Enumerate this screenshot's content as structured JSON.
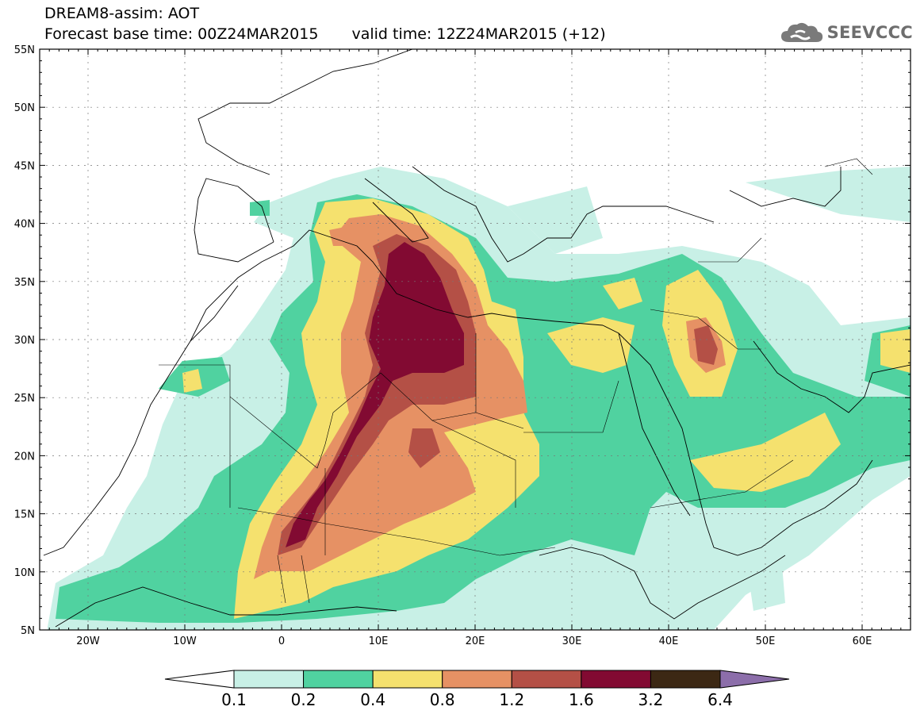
{
  "title": {
    "line1": "DREAM8-assim: AOT",
    "base": "Forecast base time: 00Z24MAR2015",
    "valid": "valid time: 12Z24MAR2015 (+12)"
  },
  "logo": {
    "text": "SEEVCCC",
    "icon": "cloud-logo-icon"
  },
  "axes": {
    "lat_labels": [
      "55N",
      "50N",
      "45N",
      "40N",
      "35N",
      "30N",
      "25N",
      "20N",
      "15N",
      "10N",
      "5N"
    ],
    "lon_labels": [
      "20W",
      "10W",
      "0",
      "10E",
      "20E",
      "30E",
      "40E",
      "50E",
      "60E"
    ],
    "lon_range": [
      -25,
      65
    ],
    "lat_range": [
      5,
      55
    ]
  },
  "colorbar": {
    "labels": [
      "0.1",
      "0.2",
      "0.4",
      "0.8",
      "1.2",
      "1.6",
      "3.2",
      "6.4"
    ],
    "colors": [
      "#ffffff",
      "#c8f0e6",
      "#50d2a0",
      "#f5e16e",
      "#e69164",
      "#b45046",
      "#820a32",
      "#3c2814",
      "#8c6eaa"
    ]
  },
  "colors": {
    "c1": "#c8f0e6",
    "c2": "#50d2a0",
    "c3": "#f5e16e",
    "c4": "#e69164",
    "c5": "#b45046",
    "c6": "#820a32"
  }
}
